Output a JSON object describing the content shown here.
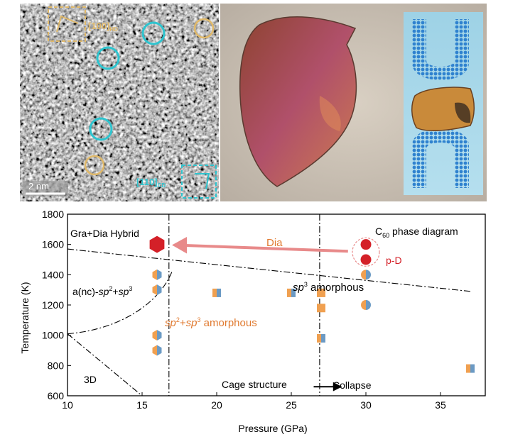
{
  "tem": {
    "label_tl": "[100]",
    "label_tl_sub": "HD",
    "label_br": "[110]",
    "label_br_sub": "CD",
    "scalebar": "2 nm"
  },
  "colors": {
    "cyan": "#2ec4cf",
    "gold": "#e0b96a",
    "red": "#d42028",
    "orange": "#f0a050",
    "blue": "#6b9ac4",
    "dia_arrow": "#e88a8a"
  },
  "chart_data": {
    "type": "scatter",
    "xlabel": "Pressure (GPa)",
    "ylabel": "Temperature (K)",
    "xlim": [
      10,
      38
    ],
    "ylim": [
      600,
      1800
    ],
    "xticks": [
      "10",
      "15",
      "20",
      "25",
      "30",
      "35"
    ],
    "yticks": [
      "600",
      "800",
      "1000",
      "1200",
      "1400",
      "1600",
      "1800"
    ],
    "annotations": {
      "hybrid": "Gra+Dia Hybrid",
      "title_c": "C",
      "title_sub": "60",
      "title_rest": " phase diagram",
      "dia": "Dia",
      "pd": "p-D",
      "anc_a": "a(nc)-",
      "anc_sp2": "sp",
      "anc_2": "2",
      "anc_plus": "+",
      "anc_sp3": "sp",
      "anc_3": "3",
      "sp3_label": "sp",
      "sp3_sup": "3",
      "sp3_rest": " amorphous",
      "mix_sp2": "sp",
      "mix_2": "2",
      "mix_plus": "+",
      "mix_sp3": "sp",
      "mix_3": "3",
      "mix_rest": " amorphous",
      "three_d": "3D",
      "cage": "Cage structure",
      "collapse": "Collapse"
    },
    "points": [
      {
        "x": 16,
        "y": 1600,
        "shape": "hexagon",
        "style": "red"
      },
      {
        "x": 16,
        "y": 1400,
        "shape": "hexagon",
        "style": "half"
      },
      {
        "x": 16,
        "y": 1300,
        "shape": "hexagon",
        "style": "half"
      },
      {
        "x": 16,
        "y": 1000,
        "shape": "hexagon",
        "style": "half"
      },
      {
        "x": 16,
        "y": 900,
        "shape": "hexagon",
        "style": "half"
      },
      {
        "x": 20,
        "y": 1280,
        "shape": "square",
        "style": "half"
      },
      {
        "x": 25,
        "y": 1280,
        "shape": "square",
        "style": "half"
      },
      {
        "x": 27,
        "y": 1280,
        "shape": "square",
        "style": "orange"
      },
      {
        "x": 27,
        "y": 1180,
        "shape": "square",
        "style": "orange"
      },
      {
        "x": 27,
        "y": 980,
        "shape": "square",
        "style": "half"
      },
      {
        "x": 30,
        "y": 1600,
        "shape": "circle",
        "style": "red"
      },
      {
        "x": 30,
        "y": 1500,
        "shape": "circle",
        "style": "red"
      },
      {
        "x": 30,
        "y": 1400,
        "shape": "circle",
        "style": "half"
      },
      {
        "x": 30,
        "y": 1200,
        "shape": "circle",
        "style": "half"
      },
      {
        "x": 37,
        "y": 780,
        "shape": "square",
        "style": "half"
      }
    ]
  }
}
